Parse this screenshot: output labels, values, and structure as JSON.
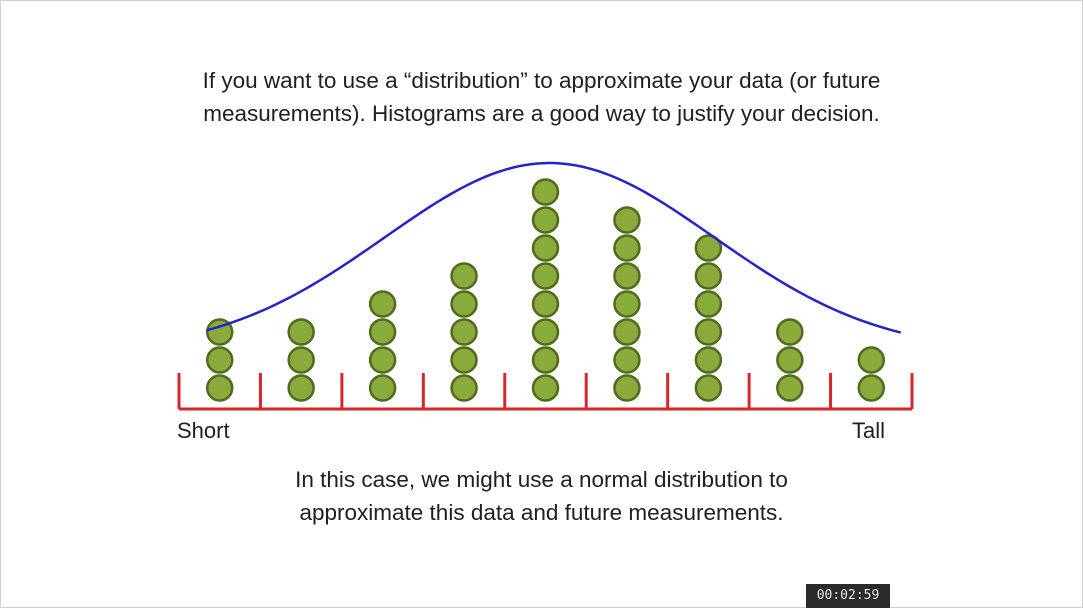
{
  "slide": {
    "top_caption": [
      "If you want to use a “distribution” to approximate your data (or future",
      "measurements). Histograms are a good way to justify your decision."
    ],
    "bottom_caption": [
      "In this case, we might use a normal distribution to",
      "approximate this data and future measurements."
    ]
  },
  "player": {
    "timestamp": "00:02:59"
  },
  "chart_data": {
    "type": "dot_histogram",
    "x_labels": {
      "left": "Short",
      "right": "Tall"
    },
    "bins": 9,
    "counts": [
      3,
      3,
      4,
      5,
      8,
      7,
      6,
      3,
      2
    ],
    "overlay": {
      "type": "normal_curve"
    },
    "colors": {
      "dot_fill": "#8aaa3c",
      "dot_stroke": "#4f6b1e",
      "axis": "#d9262b",
      "curve": "#2323c8"
    }
  }
}
